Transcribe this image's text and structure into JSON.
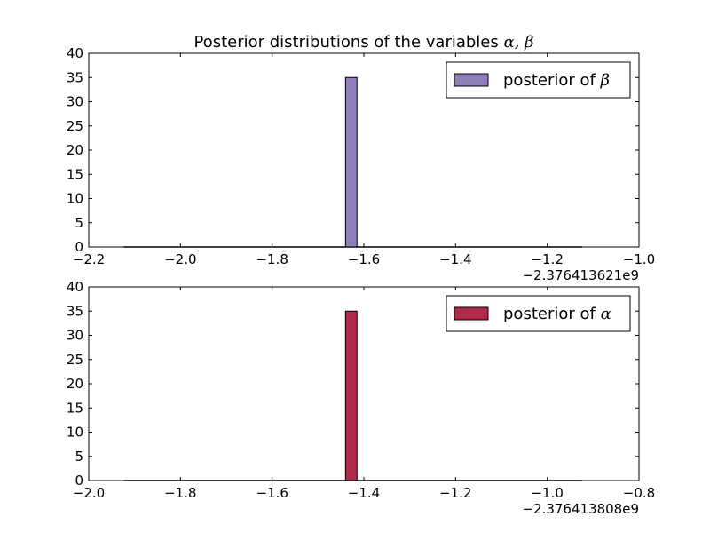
{
  "chart_data": [
    {
      "type": "bar",
      "title": "Posterior distributions of the variables α, β",
      "title_parts": {
        "text": "Posterior distributions of the variables ",
        "math": "α, β"
      },
      "xlim": [
        -2.2,
        -1.0
      ],
      "ylim": [
        0,
        40
      ],
      "xticks": [
        -2.2,
        -2.0,
        -1.8,
        -1.6,
        -1.4,
        -1.2,
        -1.0
      ],
      "xtick_labels": [
        "−2.2",
        "−2.0",
        "−1.8",
        "−1.6",
        "−1.4",
        "−1.2",
        "−1.0"
      ],
      "yticks": [
        0,
        5,
        10,
        15,
        20,
        25,
        30,
        35,
        40
      ],
      "ytick_labels": [
        "0",
        "5",
        "10",
        "15",
        "20",
        "25",
        "30",
        "35",
        "40"
      ],
      "x_offset_label": "−2.376413621e9",
      "hist_range": [
        -2.124,
        -1.124
      ],
      "bar": {
        "x_start": -1.64,
        "width": 0.025,
        "value": 35
      },
      "legend": {
        "text": "posterior of ",
        "symbol": "β",
        "position": "upper right"
      },
      "color": "#8e7fba",
      "grid": false
    },
    {
      "type": "bar",
      "title": "",
      "xlim": [
        -2.0,
        -0.8
      ],
      "ylim": [
        0,
        40
      ],
      "xticks": [
        -2.0,
        -1.8,
        -1.6,
        -1.4,
        -1.2,
        -1.0,
        -0.8
      ],
      "xtick_labels": [
        "−2.0",
        "−1.8",
        "−1.6",
        "−1.4",
        "−1.2",
        "−1.0",
        "−0.8"
      ],
      "yticks": [
        0,
        5,
        10,
        15,
        20,
        25,
        30,
        35,
        40
      ],
      "ytick_labels": [
        "0",
        "5",
        "10",
        "15",
        "20",
        "25",
        "30",
        "35",
        "40"
      ],
      "x_offset_label": "−2.376413808e9",
      "hist_range": [
        -1.924,
        -0.924
      ],
      "bar": {
        "x_start": -1.44,
        "width": 0.025,
        "value": 35
      },
      "legend": {
        "text": "posterior of ",
        "symbol": "α",
        "position": "upper right"
      },
      "color": "#b22a4a",
      "grid": false
    }
  ]
}
